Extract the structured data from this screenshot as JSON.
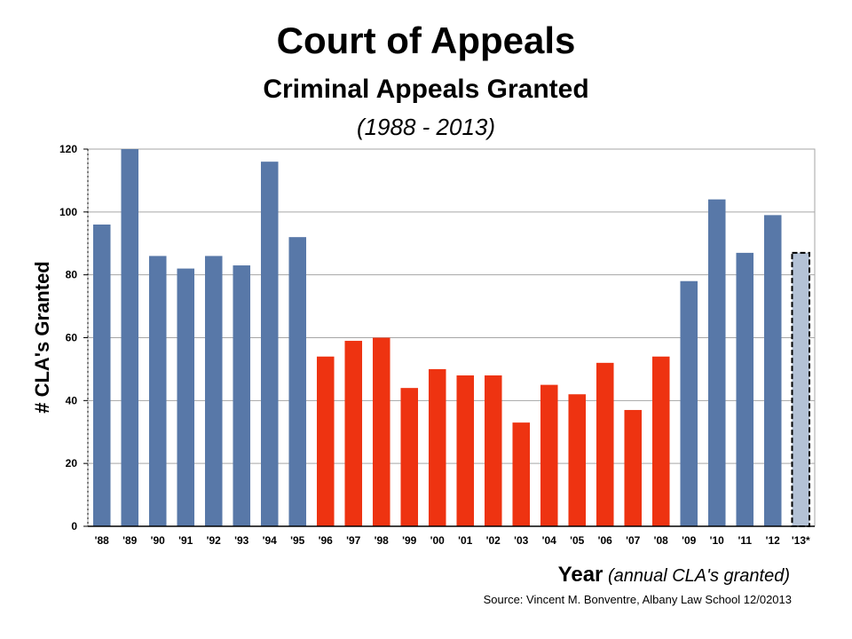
{
  "chart_data": {
    "type": "bar",
    "title": "Court of Appeals",
    "subtitle": "Criminal Appeals Granted",
    "years_label": "(1988 - 2013)",
    "ylabel": "# CLA's Granted",
    "xlabel_main": "Year",
    "xlabel_note": "(annual CLA's granted)",
    "source": "Source:  Vincent M. Bonventre,  Albany Law School  12/02013",
    "ylim": [
      0,
      120
    ],
    "yticks": [
      0,
      20,
      40,
      60,
      80,
      100,
      120
    ],
    "grid": true,
    "categories": [
      "'88",
      "'89",
      "'90",
      "'91",
      "'92",
      "'93",
      "'94",
      "'95",
      "'96",
      "'97",
      "'98",
      "'99",
      "'00",
      "'01",
      "'02",
      "'03",
      "'04",
      "'05",
      "'06",
      "'07",
      "'08",
      "'09",
      "'10",
      "'11",
      "'12",
      "'13*"
    ],
    "values": [
      96,
      120,
      86,
      82,
      86,
      83,
      116,
      92,
      54,
      59,
      60,
      44,
      50,
      48,
      48,
      33,
      45,
      42,
      52,
      37,
      54,
      78,
      104,
      87,
      99,
      87
    ],
    "groups": [
      "blue",
      "blue",
      "blue",
      "blue",
      "blue",
      "blue",
      "blue",
      "blue",
      "red",
      "red",
      "red",
      "red",
      "red",
      "red",
      "red",
      "red",
      "red",
      "red",
      "red",
      "red",
      "red",
      "blue",
      "blue",
      "blue",
      "blue",
      "projected"
    ],
    "colors": {
      "blue": "#5878a8",
      "red": "#ee3311",
      "projected": "#b4c2d6",
      "grid": "#a6a6a6",
      "axis": "#000000"
    }
  }
}
